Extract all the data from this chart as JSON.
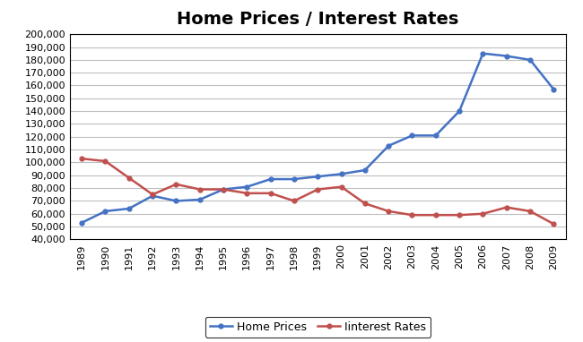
{
  "title": "Home Prices / Interest Rates",
  "years": [
    1989,
    1990,
    1991,
    1992,
    1993,
    1994,
    1995,
    1996,
    1997,
    1998,
    1999,
    2000,
    2001,
    2002,
    2003,
    2004,
    2005,
    2006,
    2007,
    2008,
    2009
  ],
  "home_prices": [
    53000,
    62000,
    64000,
    74000,
    70000,
    71000,
    79000,
    81000,
    87000,
    87000,
    89000,
    91000,
    94000,
    113000,
    121000,
    121000,
    140000,
    185000,
    183000,
    180000,
    157000
  ],
  "interest_rates": [
    103000,
    101000,
    88000,
    75000,
    83000,
    79000,
    79000,
    76000,
    76000,
    70000,
    79000,
    81000,
    68000,
    62000,
    59000,
    59000,
    59000,
    60000,
    65000,
    62000,
    52000
  ],
  "home_prices_color": "#4472C4",
  "interest_rates_color": "#C0504D",
  "ylim": [
    40000,
    200000
  ],
  "ytick_step": 10000,
  "background_color": "#FFFFFF",
  "plot_bg_color": "#FFFFFF",
  "grid_color": "#BFBFBF",
  "title_fontsize": 14,
  "legend_labels": [
    "Home Prices",
    "Iinterest Rates"
  ],
  "marker": "o",
  "marker_size": 3.5,
  "line_width": 1.8,
  "tick_fontsize": 8,
  "xlim_left": 1988.5,
  "xlim_right": 2009.5
}
